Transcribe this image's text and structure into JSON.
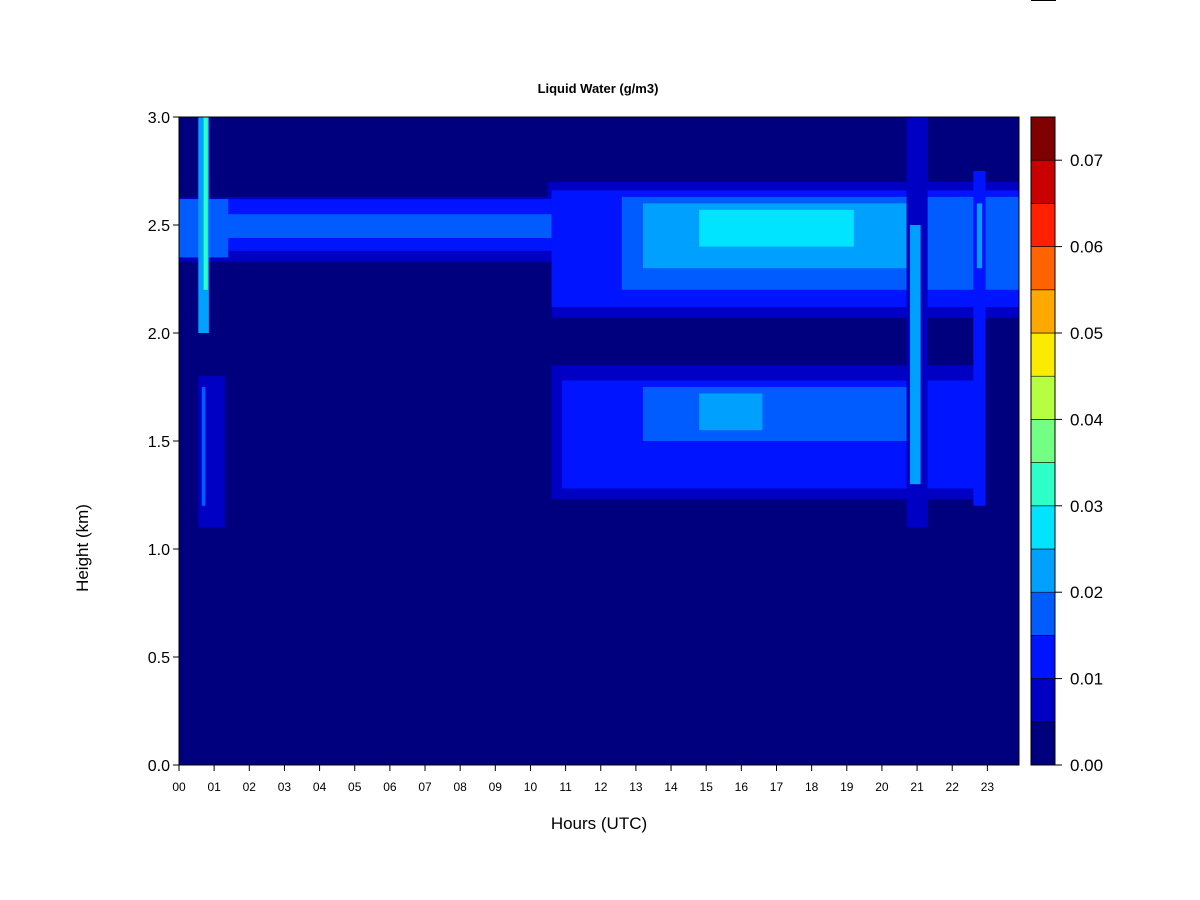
{
  "chart_data": {
    "type": "heatmap",
    "title": "Liquid Water (g/m3)",
    "xlabel": "Hours (UTC)",
    "ylabel": "Height (km)",
    "xlim": [
      0,
      23.9
    ],
    "ylim": [
      0,
      3.0
    ],
    "x_ticks": [
      "00",
      "01",
      "02",
      "03",
      "04",
      "05",
      "06",
      "07",
      "08",
      "09",
      "10",
      "11",
      "12",
      "13",
      "14",
      "15",
      "16",
      "17",
      "18",
      "19",
      "20",
      "21",
      "22",
      "23"
    ],
    "y_ticks": [
      "0.0",
      "0.5",
      "1.0",
      "1.5",
      "2.0",
      "2.5",
      "3.0"
    ],
    "colorbar": {
      "range": [
        0,
        0.075
      ],
      "levels": [
        0,
        0.005,
        0.01,
        0.015,
        0.02,
        0.025,
        0.03,
        0.035,
        0.04,
        0.045,
        0.05,
        0.055,
        0.06,
        0.065,
        0.07,
        0.075
      ],
      "colors": [
        "#00007f",
        "#0000c4",
        "#0014ff",
        "#005cff",
        "#00a0ff",
        "#00e4ff",
        "#2effc8",
        "#72ff84",
        "#b6ff40",
        "#faeb00",
        "#ffa800",
        "#ff6400",
        "#ff2000",
        "#c90000",
        "#7f0000"
      ],
      "tick_labels": [
        "0.00",
        "0.01",
        "0.02",
        "0.03",
        "0.04",
        "0.05",
        "0.06",
        "0.07"
      ]
    },
    "background_level": 0.0025,
    "regions": [
      {
        "x": [
          0,
          23.9
        ],
        "y": [
          2.07,
          2.7
        ],
        "value": 0.0075
      },
      {
        "x": [
          0,
          10.6
        ],
        "y": [
          2.07,
          2.33
        ],
        "value": 0.0025
      },
      {
        "x": [
          0,
          10.5
        ],
        "y": [
          2.63,
          2.7
        ],
        "value": 0.0025
      },
      {
        "x": [
          0,
          10.6
        ],
        "y": [
          2.38,
          2.62
        ],
        "value": 0.0125
      },
      {
        "x": [
          0,
          10.6
        ],
        "y": [
          2.44,
          2.55
        ],
        "value": 0.0175
      },
      {
        "x": [
          10.6,
          23.9
        ],
        "y": [
          2.12,
          2.66
        ],
        "value": 0.0125
      },
      {
        "x": [
          12.6,
          23.9
        ],
        "y": [
          2.2,
          2.63
        ],
        "value": 0.0175
      },
      {
        "x": [
          13.2,
          20.8
        ],
        "y": [
          2.3,
          2.6
        ],
        "value": 0.0225
      },
      {
        "x": [
          14.8,
          19.2
        ],
        "y": [
          2.4,
          2.57
        ],
        "value": 0.0275
      },
      {
        "x": [
          10.6,
          22.9
        ],
        "y": [
          1.23,
          1.85
        ],
        "value": 0.0075
      },
      {
        "x": [
          10.9,
          22.9
        ],
        "y": [
          1.28,
          1.78
        ],
        "value": 0.0125
      },
      {
        "x": [
          13.2,
          20.8
        ],
        "y": [
          1.5,
          1.75
        ],
        "value": 0.0175
      },
      {
        "x": [
          14.8,
          16.6
        ],
        "y": [
          1.55,
          1.72
        ],
        "value": 0.0225
      },
      {
        "x": [
          0,
          1.4
        ],
        "y": [
          2.35,
          2.62
        ],
        "value": 0.0175
      },
      {
        "x": [
          0.55,
          0.85
        ],
        "y": [
          2.0,
          3.0
        ],
        "value": 0.0225
      },
      {
        "x": [
          0.7,
          0.82
        ],
        "y": [
          2.2,
          3.0
        ],
        "value": 0.0325
      },
      {
        "x": [
          0.55,
          1.3
        ],
        "y": [
          1.1,
          1.8
        ],
        "value": 0.0075
      },
      {
        "x": [
          0.65,
          0.75
        ],
        "y": [
          1.2,
          1.75
        ],
        "value": 0.0175
      },
      {
        "x": [
          20.7,
          21.3
        ],
        "y": [
          1.1,
          3.0
        ],
        "value": 0.0075
      },
      {
        "x": [
          20.8,
          21.1
        ],
        "y": [
          1.3,
          2.5
        ],
        "value": 0.0225
      },
      {
        "x": [
          22.6,
          22.95
        ],
        "y": [
          1.2,
          2.75
        ],
        "value": 0.0125
      },
      {
        "x": [
          22.7,
          22.85
        ],
        "y": [
          2.3,
          2.6
        ],
        "value": 0.0225
      }
    ]
  }
}
